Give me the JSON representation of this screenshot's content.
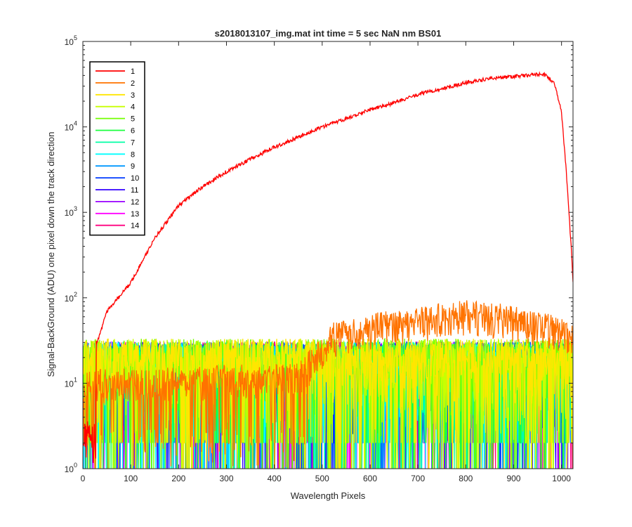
{
  "chart_data": {
    "type": "line",
    "title": "s2018013107_img.mat int time = 5 sec  NaN nm BS01",
    "xlabel": "Wavelength Pixels",
    "ylabel": "Signal-BackGround (ADU) one pixel down the track direction",
    "xlim": [
      0,
      1024
    ],
    "ylim": [
      1,
      100000
    ],
    "yscale": "log",
    "grid": false,
    "legend_position": "top-left",
    "x_ticks": [
      "0",
      "100",
      "200",
      "300",
      "400",
      "500",
      "600",
      "700",
      "800",
      "900",
      "1000"
    ],
    "x_tick_values": [
      0,
      100,
      200,
      300,
      400,
      500,
      600,
      700,
      800,
      900,
      1000
    ],
    "y_ticks": [
      {
        "base": "10",
        "exp": "0",
        "value": 1
      },
      {
        "base": "10",
        "exp": "1",
        "value": 10
      },
      {
        "base": "10",
        "exp": "2",
        "value": 100
      },
      {
        "base": "10",
        "exp": "3",
        "value": 1000
      },
      {
        "base": "10",
        "exp": "4",
        "value": 10000
      },
      {
        "base": "10",
        "exp": "5",
        "value": 100000
      }
    ],
    "series": [
      {
        "name": "1",
        "color": "#ff0000",
        "kind": "signal",
        "points": [
          [
            30,
            30
          ],
          [
            50,
            70
          ],
          [
            100,
            150
          ],
          [
            150,
            500
          ],
          [
            200,
            1200
          ],
          [
            250,
            2000
          ],
          [
            300,
            3000
          ],
          [
            350,
            4200
          ],
          [
            400,
            5800
          ],
          [
            450,
            7600
          ],
          [
            500,
            10000
          ],
          [
            550,
            12500
          ],
          [
            600,
            16000
          ],
          [
            650,
            19000
          ],
          [
            700,
            24000
          ],
          [
            750,
            28000
          ],
          [
            800,
            33000
          ],
          [
            850,
            37000
          ],
          [
            900,
            39000
          ],
          [
            950,
            41000
          ],
          [
            965,
            41000
          ],
          [
            985,
            33000
          ],
          [
            1000,
            15000
          ],
          [
            1010,
            3000
          ],
          [
            1020,
            400
          ],
          [
            1024,
            160
          ]
        ],
        "noise": 0.05
      },
      {
        "name": "2",
        "color": "#ff7300",
        "kind": "elevated",
        "points": [
          [
            0,
            10
          ],
          [
            450,
            12
          ],
          [
            500,
            25
          ],
          [
            520,
            35
          ],
          [
            600,
            45
          ],
          [
            700,
            55
          ],
          [
            800,
            65
          ],
          [
            850,
            62
          ],
          [
            900,
            55
          ],
          [
            950,
            48
          ],
          [
            1024,
            38
          ]
        ]
      },
      {
        "name": "3",
        "color": "#ffe600",
        "kind": "noise",
        "mean": 12
      },
      {
        "name": "4",
        "color": "#c8ff00",
        "kind": "noise",
        "mean": 12
      },
      {
        "name": "5",
        "color": "#73ff00",
        "kind": "noise",
        "mean": 12
      },
      {
        "name": "6",
        "color": "#1aff3c",
        "kind": "noise",
        "mean": 11
      },
      {
        "name": "7",
        "color": "#00ffa6",
        "kind": "noise",
        "mean": 11
      },
      {
        "name": "8",
        "color": "#00ffff",
        "kind": "noise",
        "mean": 11
      },
      {
        "name": "9",
        "color": "#0099ff",
        "kind": "noise",
        "mean": 11
      },
      {
        "name": "10",
        "color": "#003cff",
        "kind": "noise",
        "mean": 11
      },
      {
        "name": "11",
        "color": "#3300ff",
        "kind": "noise",
        "mean": 11
      },
      {
        "name": "12",
        "color": "#9900ff",
        "kind": "noise",
        "mean": 11
      },
      {
        "name": "13",
        "color": "#ff00ff",
        "kind": "noise",
        "mean": 11
      },
      {
        "name": "14",
        "color": "#ff0080",
        "kind": "noise",
        "mean": 11
      }
    ]
  }
}
